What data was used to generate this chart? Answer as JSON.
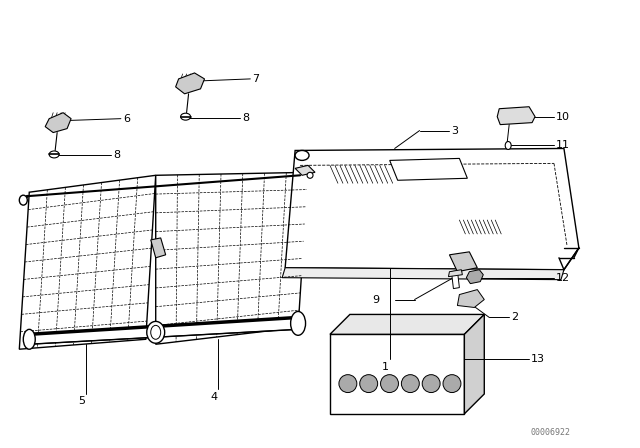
{
  "background_color": "#ffffff",
  "diagram_color": "#000000",
  "watermark": "00006922",
  "figsize": [
    6.4,
    4.48
  ],
  "dpi": 100
}
